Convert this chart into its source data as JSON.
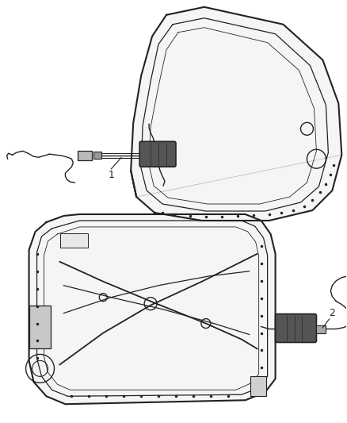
{
  "bg_color": "#ffffff",
  "line_color": "#222222",
  "dark_color": "#333333",
  "gray_color": "#888888",
  "light_gray": "#cccccc",
  "label_1_text": "1",
  "label_2_text": "2",
  "figsize": [
    4.38,
    5.33
  ],
  "dpi": 100
}
